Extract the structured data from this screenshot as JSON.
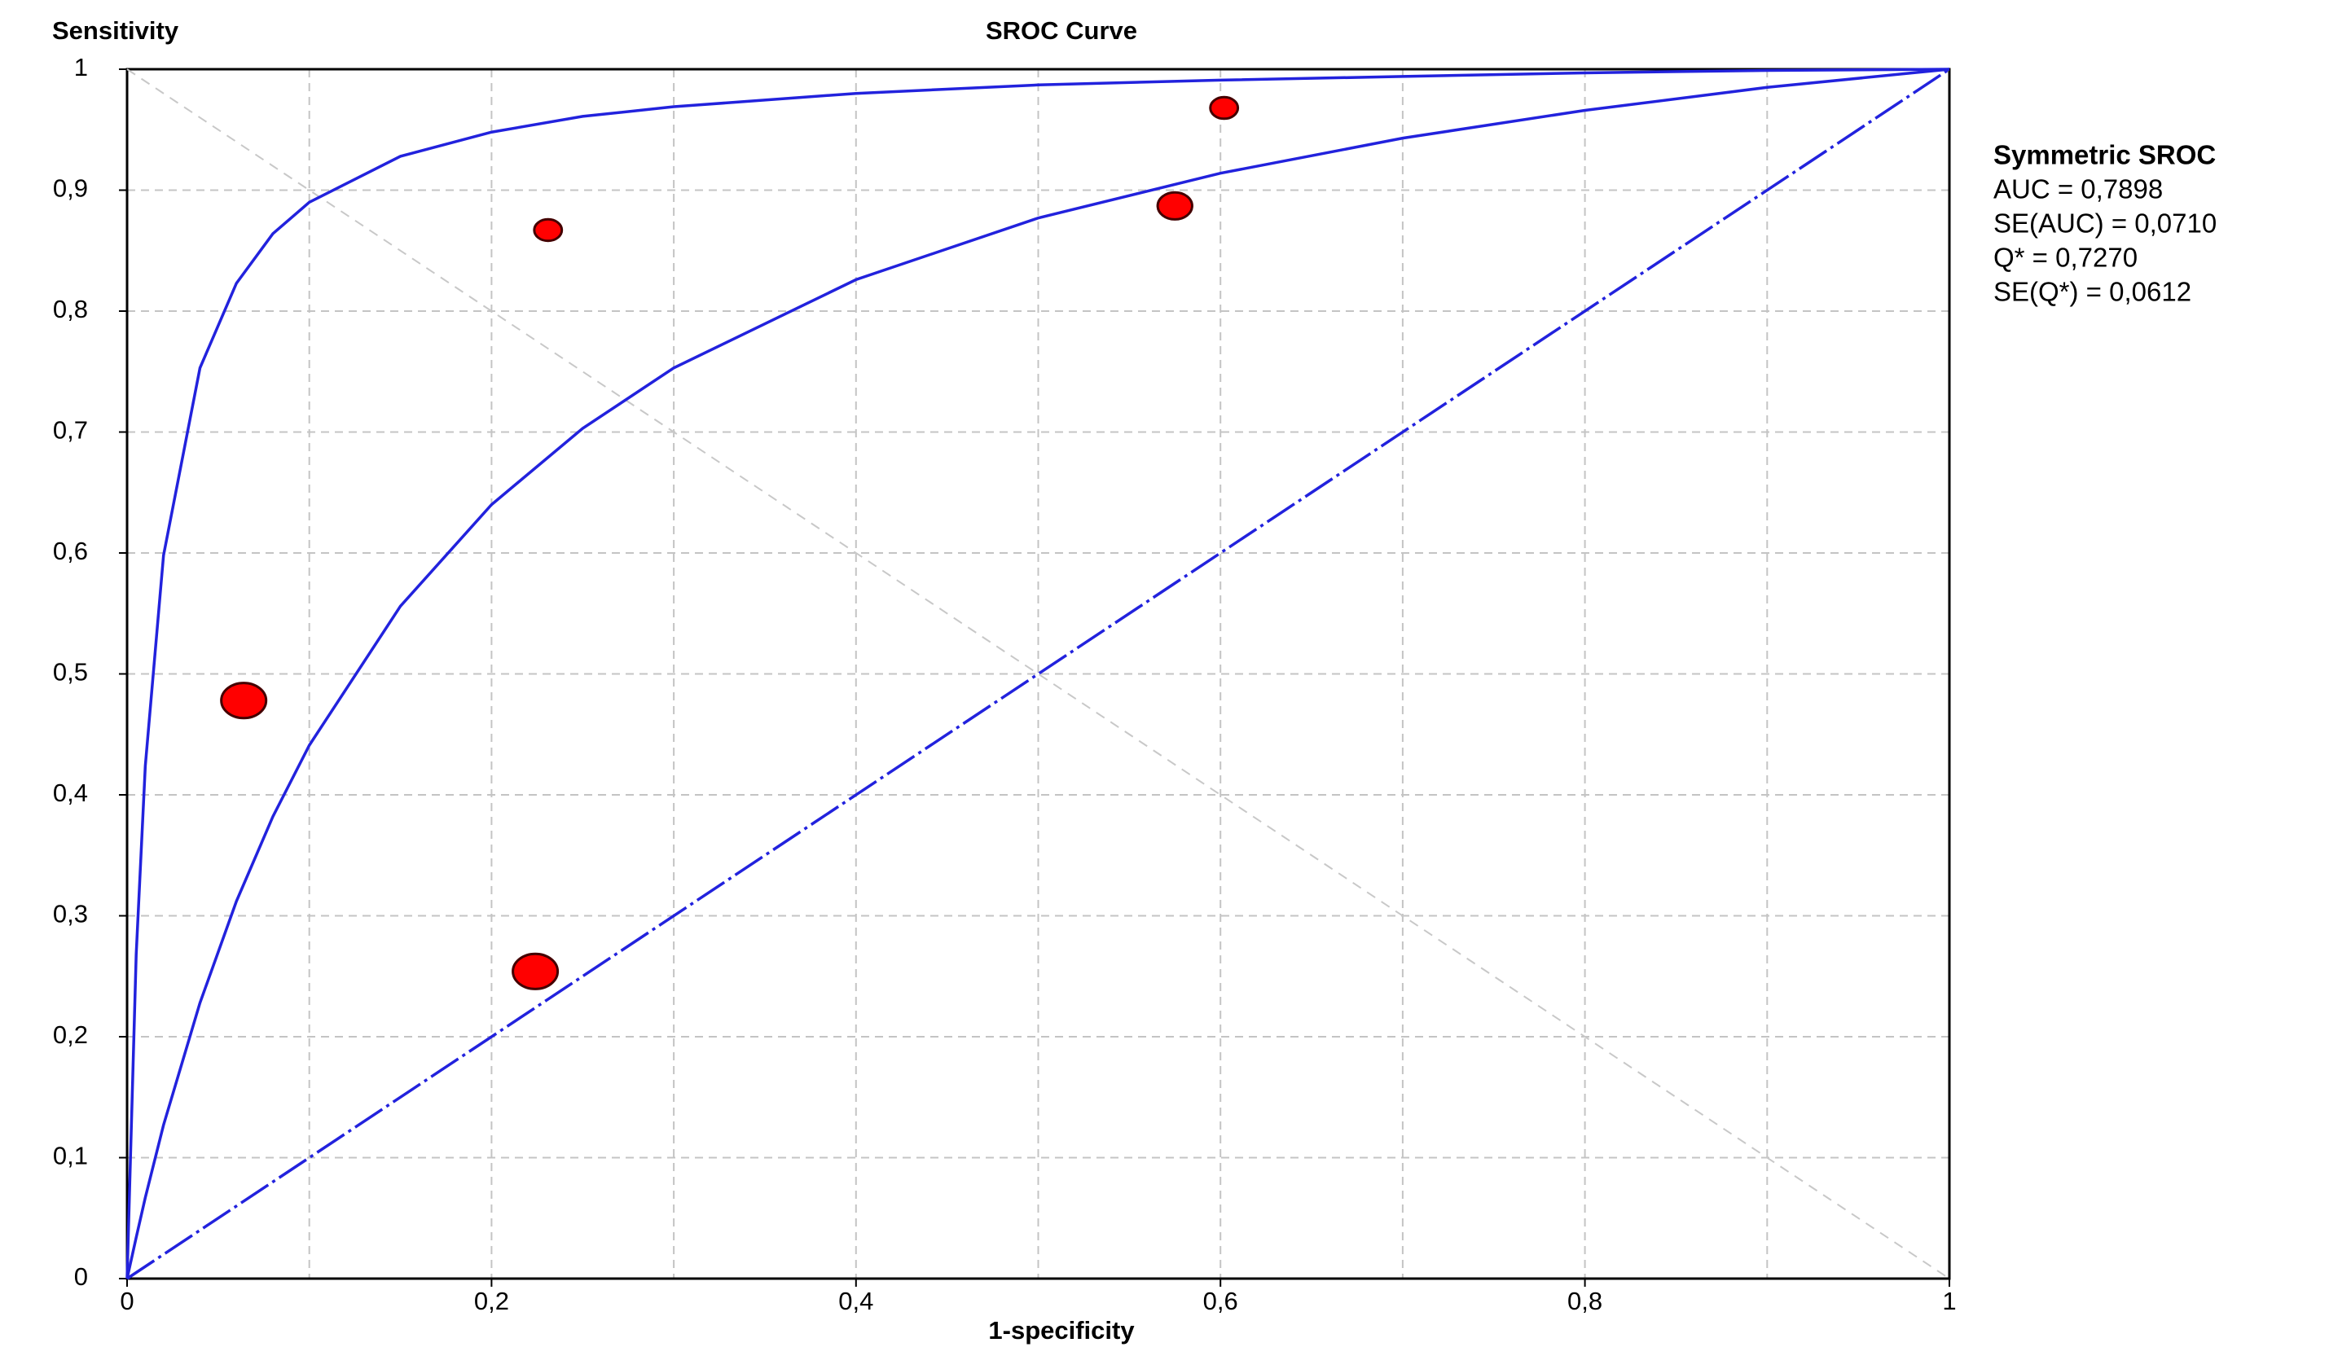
{
  "chart_data": {
    "type": "scatter",
    "title": "SROC Curve",
    "ylabel": "Sensitivity",
    "xlabel": "1-specificity",
    "annotation_title": "Symmetric SROC",
    "annotations": [
      "AUC = 0,7898",
      "SE(AUC) = 0,0710",
      "Q* = 0,7270",
      "SE(Q*) = 0,0612"
    ],
    "xlim": [
      0,
      1
    ],
    "ylim": [
      0,
      1
    ],
    "xticks": [
      0,
      {
        "value": 0.2,
        "label": "0,2"
      },
      {
        "value": 0.4,
        "label": "0,4"
      },
      {
        "value": 0.6,
        "label": "0,6"
      },
      {
        "value": 0.8,
        "label": "0,8"
      },
      1
    ],
    "xgrid": [
      0.1,
      0.3,
      0.5,
      0.7,
      0.9
    ],
    "yticks": [
      0,
      {
        "value": 0.1,
        "label": "0,1"
      },
      {
        "value": 0.2,
        "label": "0,2"
      },
      {
        "value": 0.3,
        "label": "0,3"
      },
      {
        "value": 0.4,
        "label": "0,4"
      },
      {
        "value": 0.5,
        "label": "0,5"
      },
      {
        "value": 0.6,
        "label": "0,6"
      },
      {
        "value": 0.7,
        "label": "0,7"
      },
      {
        "value": 0.8,
        "label": "0,8"
      },
      {
        "value": 0.9,
        "label": "0,9"
      },
      1
    ],
    "grid": true,
    "series": [
      {
        "type": "line",
        "color": "#c8c8c8",
        "dash": "dashed",
        "x": [
          0,
          1
        ],
        "values": [
          1,
          0
        ]
      },
      {
        "type": "line",
        "color": "#2222dd",
        "dash": "dashdot",
        "x": [
          0,
          1
        ],
        "values": [
          0,
          1
        ]
      },
      {
        "type": "line",
        "color": "#2222dd",
        "dash": "solid",
        "x": [
          0,
          0.005,
          0.01,
          0.02,
          0.04,
          0.06,
          0.08,
          0.1,
          0.15,
          0.2,
          0.25,
          0.3,
          0.4,
          0.5,
          0.6,
          0.7,
          0.8,
          0.9,
          1
        ],
        "values": [
          0,
          0.268,
          0.424,
          0.598,
          0.753,
          0.823,
          0.864,
          0.89,
          0.928,
          0.948,
          0.961,
          0.969,
          0.98,
          0.987,
          0.991,
          0.994,
          0.997,
          0.999,
          1
        ]
      },
      {
        "type": "line",
        "color": "#2222dd",
        "dash": "solid",
        "x": [
          0,
          0.005,
          0.01,
          0.02,
          0.04,
          0.06,
          0.08,
          0.1,
          0.15,
          0.2,
          0.25,
          0.3,
          0.4,
          0.5,
          0.6,
          0.7,
          0.8,
          0.9,
          1
        ],
        "values": [
          0,
          0.034,
          0.067,
          0.127,
          0.228,
          0.312,
          0.382,
          0.441,
          0.556,
          0.64,
          0.703,
          0.753,
          0.826,
          0.877,
          0.914,
          0.943,
          0.966,
          0.985,
          1
        ]
      },
      {
        "type": "scatter",
        "color": "#ff0000",
        "x": [
          0.064,
          0.224,
          0.231,
          0.575,
          0.602
        ],
        "values": [
          0.478,
          0.254,
          0.867,
          0.887,
          0.968
        ],
        "sizes": [
          13,
          13,
          8,
          10,
          8
        ]
      }
    ]
  }
}
